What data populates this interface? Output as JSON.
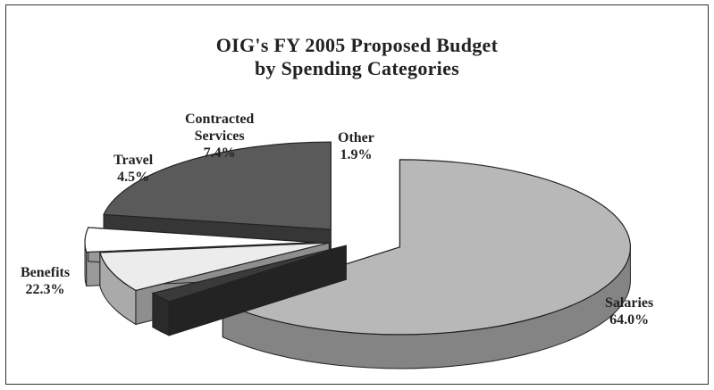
{
  "chart_data": {
    "type": "pie",
    "title": "OIG's FY 2005 Proposed Budget",
    "subtitle": "by Spending Categories",
    "slices": [
      {
        "name": "Salaries",
        "value": 64.0,
        "value_label": "64.0%",
        "color": "#b8b8b8"
      },
      {
        "name": "Other",
        "value": 1.9,
        "value_label": "1.9%",
        "color": "#3a3a3a"
      },
      {
        "name": "Contracted Services",
        "name_lines": [
          "Contracted",
          "Services"
        ],
        "value": 7.4,
        "value_label": "7.4%",
        "color": "#ececec"
      },
      {
        "name": "Travel",
        "value": 4.5,
        "value_label": "4.5%",
        "color": "#ffffff"
      },
      {
        "name": "Benefits",
        "value": 22.3,
        "value_label": "22.3%",
        "color": "#5a5a5a"
      }
    ]
  }
}
